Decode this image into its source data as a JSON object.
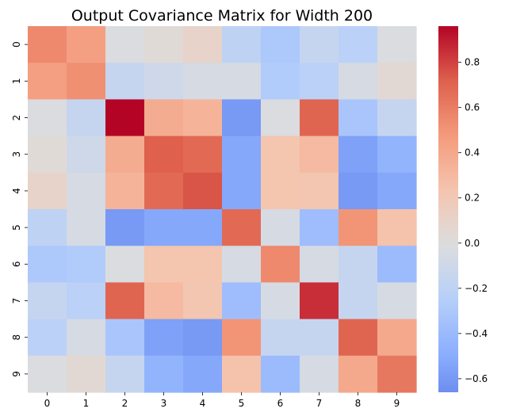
{
  "chart_data": {
    "type": "heatmap",
    "title": "Output Covariance Matrix for Width 200",
    "xlabel": "",
    "ylabel": "",
    "x_ticks": [
      "0",
      "1",
      "2",
      "3",
      "4",
      "5",
      "6",
      "7",
      "8",
      "9"
    ],
    "y_ticks": [
      "0",
      "1",
      "2",
      "3",
      "4",
      "5",
      "6",
      "7",
      "8",
      "9"
    ],
    "colormap": "coolwarm",
    "vmin": -0.66,
    "vmax": 0.96,
    "colorbar_ticks": [
      0.8,
      0.6,
      0.4,
      0.2,
      0.0,
      -0.2,
      -0.4,
      -0.6
    ],
    "colorbar_tick_labels": [
      "0.8",
      "0.6",
      "0.4",
      "0.2",
      "0.0",
      "−0.2",
      "−0.4",
      "−0.6"
    ],
    "matrix": [
      [
        0.55,
        0.45,
        -0.02,
        0.03,
        0.1,
        -0.2,
        -0.3,
        -0.15,
        -0.22,
        -0.02
      ],
      [
        0.45,
        0.52,
        -0.15,
        -0.1,
        -0.05,
        -0.05,
        -0.28,
        -0.22,
        -0.05,
        0.05
      ],
      [
        -0.02,
        -0.15,
        0.96,
        0.38,
        0.33,
        -0.6,
        -0.02,
        0.7,
        -0.32,
        -0.15
      ],
      [
        0.03,
        -0.1,
        0.38,
        0.72,
        0.68,
        -0.52,
        0.23,
        0.3,
        -0.56,
        -0.45
      ],
      [
        0.1,
        -0.05,
        0.33,
        0.68,
        0.75,
        -0.52,
        0.23,
        0.22,
        -0.6,
        -0.52
      ],
      [
        -0.2,
        -0.05,
        -0.6,
        -0.52,
        -0.52,
        0.68,
        -0.05,
        -0.38,
        0.5,
        0.25
      ],
      [
        -0.3,
        -0.28,
        -0.02,
        0.23,
        0.23,
        -0.05,
        0.55,
        -0.05,
        -0.15,
        -0.4
      ],
      [
        -0.15,
        -0.22,
        0.7,
        0.3,
        0.22,
        -0.38,
        -0.05,
        0.85,
        -0.15,
        -0.05
      ],
      [
        -0.22,
        -0.05,
        -0.32,
        -0.56,
        -0.6,
        0.5,
        -0.15,
        -0.15,
        0.7,
        0.4
      ],
      [
        -0.02,
        0.05,
        -0.15,
        -0.45,
        -0.52,
        0.25,
        -0.4,
        -0.05,
        0.4,
        0.62
      ]
    ]
  }
}
